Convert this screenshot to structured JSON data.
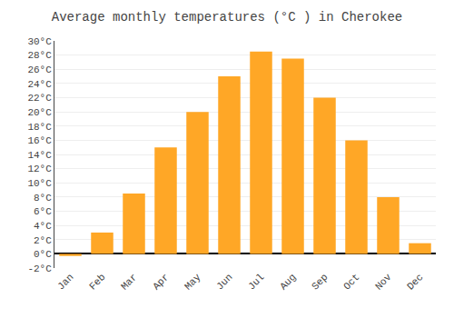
{
  "chart_data": {
    "type": "bar",
    "title": "Average monthly temperatures (°C ) in Cherokee",
    "categories": [
      "Jan",
      "Feb",
      "Mar",
      "Apr",
      "May",
      "Jun",
      "Jul",
      "Aug",
      "Sep",
      "Oct",
      "Nov",
      "Dec"
    ],
    "values": [
      -0.3,
      3.0,
      8.5,
      15.0,
      20.0,
      25.0,
      28.5,
      27.5,
      22.0,
      16.0,
      8.0,
      1.5
    ],
    "color": "#FFA726",
    "ylim": [
      -2,
      30
    ],
    "yticks": [
      {
        "value": -2,
        "label": "-2°C"
      },
      {
        "value": 0,
        "label": "0°C"
      },
      {
        "value": 2,
        "label": "2°C"
      },
      {
        "value": 4,
        "label": "4°C"
      },
      {
        "value": 6,
        "label": "6°C"
      },
      {
        "value": 8,
        "label": "8°C"
      },
      {
        "value": 10,
        "label": "10°C"
      },
      {
        "value": 12,
        "label": "12°C"
      },
      {
        "value": 14,
        "label": "14°C"
      },
      {
        "value": 16,
        "label": "16°C"
      },
      {
        "value": 18,
        "label": "18°C"
      },
      {
        "value": 20,
        "label": "20°C"
      },
      {
        "value": 22,
        "label": "22°C"
      },
      {
        "value": 24,
        "label": "24°C"
      },
      {
        "value": 26,
        "label": "26°C"
      },
      {
        "value": 28,
        "label": "28°C"
      },
      {
        "value": 30,
        "label": "30°C"
      }
    ],
    "grid": true
  }
}
